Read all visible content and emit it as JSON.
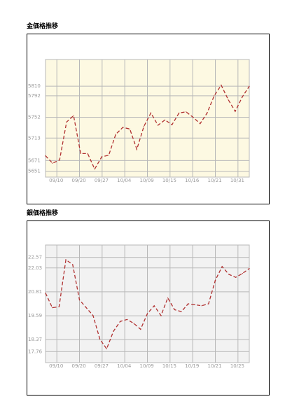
{
  "charts": [
    {
      "title": "金価格推移",
      "chart_data": {
        "type": "line",
        "title": "金価格推移",
        "xlabel": "",
        "ylabel": "",
        "background": "#fdf9e2",
        "line_color": "#b03030",
        "grid": true,
        "ylim": [
          5640,
          5860
        ],
        "yticks": [
          5651,
          5671,
          5713,
          5752,
          5792,
          5810
        ],
        "xticks": [
          "09/10",
          "09/20",
          "09/27",
          "10/04",
          "10/09",
          "10/15",
          "10/16",
          "10/21",
          "10/31"
        ],
        "y": [
          5680,
          5666,
          5672,
          5743,
          5755,
          5684,
          5684,
          5655,
          5678,
          5681,
          5720,
          5733,
          5730,
          5692,
          5735,
          5760,
          5737,
          5747,
          5738,
          5760,
          5762,
          5752,
          5740,
          5760,
          5792,
          5812,
          5785,
          5763,
          5790,
          5810
        ]
      }
    },
    {
      "title": "銀価格推移",
      "chart_data": {
        "type": "line",
        "title": "銀価格推移",
        "xlabel": "",
        "ylabel": "",
        "background": "#f2f2f2",
        "line_color": "#b03030",
        "grid": true,
        "ylim": [
          17.2,
          23.2
        ],
        "yticks": [
          17.76,
          18.37,
          19.59,
          20.81,
          22.03,
          22.57
        ],
        "xticks": [
          "09/10",
          "09/20",
          "09/27",
          "10/04",
          "10/09",
          "10/15",
          "10/19",
          "10/21",
          "10/25"
        ],
        "y": [
          20.75,
          20.0,
          20.05,
          22.45,
          22.2,
          20.4,
          20.0,
          19.6,
          18.4,
          17.9,
          18.8,
          19.3,
          19.4,
          19.2,
          18.9,
          19.7,
          20.1,
          19.6,
          20.5,
          19.9,
          19.8,
          20.2,
          20.15,
          20.1,
          20.2,
          21.4,
          22.1,
          21.7,
          21.55,
          21.75,
          22.0
        ]
      }
    }
  ]
}
